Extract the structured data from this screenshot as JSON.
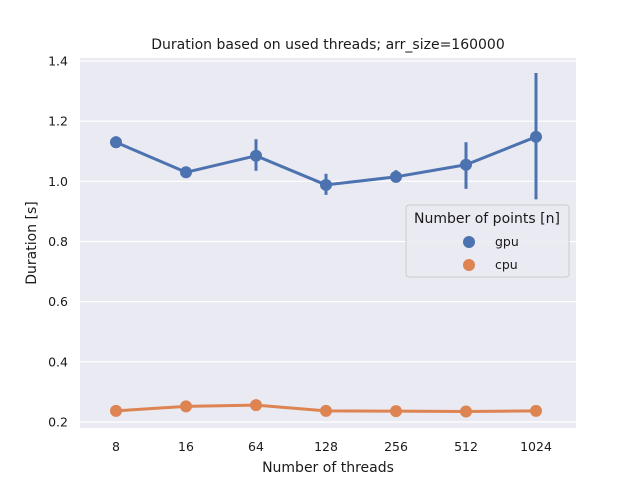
{
  "chart_data": {
    "type": "line",
    "title": "Duration based on used threads; arr_size=160000",
    "xlabel": "Number of threads",
    "ylabel": "Duration [s]",
    "categories": [
      "8",
      "16",
      "64",
      "128",
      "256",
      "512",
      "1024"
    ],
    "yticks": [
      "0.2",
      "0.4",
      "0.6",
      "0.8",
      "1.0",
      "1.2",
      "1.4"
    ],
    "ylim": [
      0.18,
      1.41
    ],
    "grid": true,
    "legend": {
      "title": "Number of points [n]",
      "position": "right"
    },
    "series": [
      {
        "name": "gpu",
        "color": "#4c72b0",
        "values": [
          1.13,
          1.03,
          1.085,
          0.988,
          1.015,
          1.055,
          1.148
        ],
        "err_low": [
          1.12,
          1.018,
          1.035,
          0.955,
          1.003,
          0.975,
          0.94
        ],
        "err_high": [
          1.15,
          1.04,
          1.14,
          1.025,
          1.037,
          1.13,
          1.36
        ]
      },
      {
        "name": "cpu",
        "color": "#dd8452",
        "values": [
          0.237,
          0.252,
          0.256,
          0.237,
          0.236,
          0.235,
          0.237
        ],
        "err_low": [
          0.235,
          0.249,
          0.24,
          0.235,
          0.234,
          0.233,
          0.235
        ],
        "err_high": [
          0.239,
          0.256,
          0.273,
          0.239,
          0.238,
          0.237,
          0.239
        ]
      }
    ]
  }
}
